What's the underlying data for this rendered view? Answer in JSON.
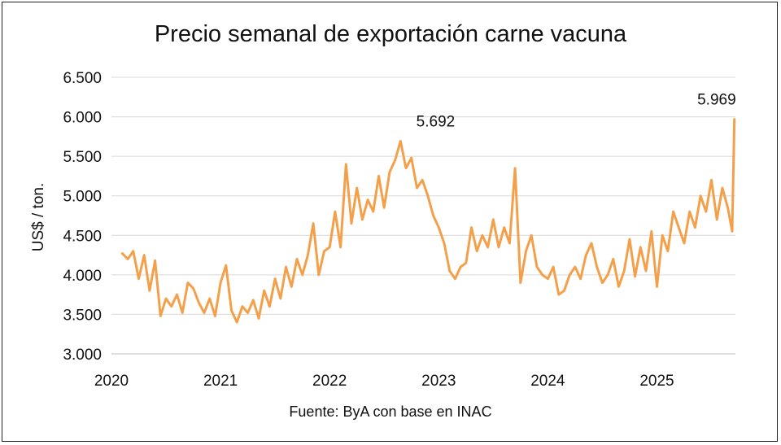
{
  "chart_data": {
    "type": "line",
    "title": "Precio semanal de exportación carne vacuna",
    "ylabel": "US$ / ton.",
    "xlabel": "",
    "source": "Fuente: ByA con base en INAC",
    "ylim": [
      3000,
      6500
    ],
    "xlim": [
      2020,
      2025.72
    ],
    "yticks": [
      3000,
      3500,
      4000,
      4500,
      5000,
      5500,
      6000,
      6500
    ],
    "ytick_labels": [
      "3.000",
      "3.500",
      "4.000",
      "4.500",
      "5.000",
      "5.500",
      "6.000",
      "6.500"
    ],
    "xticks": [
      2020,
      2021,
      2022,
      2023,
      2024,
      2025
    ],
    "xtick_labels": [
      "2020",
      "2021",
      "2022",
      "2023",
      "2024",
      "2025"
    ],
    "grid": "horizontal",
    "legend": "none",
    "color": "#F4A04A",
    "annotations": [
      {
        "text": "5.692",
        "x": 2022.63,
        "y": 5692
      },
      {
        "text": "5.969",
        "x": 2025.71,
        "y": 5969
      }
    ],
    "series": [
      {
        "x": [
          2020.1,
          2020.15,
          2020.2,
          2020.25,
          2020.3,
          2020.35,
          2020.4,
          2020.45,
          2020.5,
          2020.55,
          2020.6,
          2020.65,
          2020.7,
          2020.75,
          2020.8,
          2020.85,
          2020.9,
          2020.95,
          2021.0,
          2021.05,
          2021.1,
          2021.15,
          2021.2,
          2021.25,
          2021.3,
          2021.35,
          2021.4,
          2021.45,
          2021.5,
          2021.55,
          2021.6,
          2021.65,
          2021.7,
          2021.75,
          2021.8,
          2021.85,
          2021.9,
          2021.95,
          2022.0,
          2022.05,
          2022.1,
          2022.15,
          2022.2,
          2022.25,
          2022.3,
          2022.35,
          2022.4,
          2022.45,
          2022.5,
          2022.55,
          2022.6,
          2022.65,
          2022.7,
          2022.75,
          2022.8,
          2022.85,
          2022.9,
          2022.95,
          2023.0,
          2023.05,
          2023.1,
          2023.15,
          2023.2,
          2023.25,
          2023.3,
          2023.35,
          2023.4,
          2023.45,
          2023.5,
          2023.55,
          2023.6,
          2023.65,
          2023.7,
          2023.75,
          2023.8,
          2023.85,
          2023.9,
          2023.95,
          2024.0,
          2024.05,
          2024.1,
          2024.15,
          2024.2,
          2024.25,
          2024.3,
          2024.35,
          2024.4,
          2024.45,
          2024.5,
          2024.55,
          2024.6,
          2024.65,
          2024.7,
          2024.75,
          2024.8,
          2024.85,
          2024.9,
          2024.95,
          2025.0,
          2025.05,
          2025.1,
          2025.15,
          2025.2,
          2025.25,
          2025.3,
          2025.35,
          2025.4,
          2025.45,
          2025.5,
          2025.55,
          2025.6,
          2025.65,
          2025.69,
          2025.71
        ],
        "values": [
          4270,
          4200,
          4300,
          3950,
          4250,
          3800,
          4180,
          3480,
          3700,
          3600,
          3750,
          3520,
          3900,
          3830,
          3650,
          3520,
          3700,
          3480,
          3900,
          4120,
          3550,
          3400,
          3600,
          3520,
          3680,
          3450,
          3800,
          3600,
          3950,
          3700,
          4100,
          3850,
          4200,
          4000,
          4250,
          4650,
          4000,
          4300,
          4350,
          4800,
          4350,
          5400,
          4650,
          5100,
          4700,
          4950,
          4800,
          5250,
          4850,
          5300,
          5450,
          5692,
          5350,
          5480,
          5100,
          5200,
          5000,
          4750,
          4600,
          4400,
          4050,
          3950,
          4100,
          4150,
          4600,
          4300,
          4500,
          4350,
          4700,
          4350,
          4600,
          4400,
          5350,
          3900,
          4300,
          4500,
          4100,
          4000,
          3950,
          4100,
          3750,
          3800,
          4000,
          4100,
          3950,
          4250,
          4400,
          4100,
          3900,
          4000,
          4200,
          3850,
          4050,
          4450,
          3980,
          4350,
          4050,
          4550,
          3850,
          4500,
          4300,
          4800,
          4600,
          4400,
          4800,
          4600,
          5000,
          4800,
          5200,
          4700,
          5100,
          4850,
          4550,
          5969
        ]
      }
    ]
  }
}
